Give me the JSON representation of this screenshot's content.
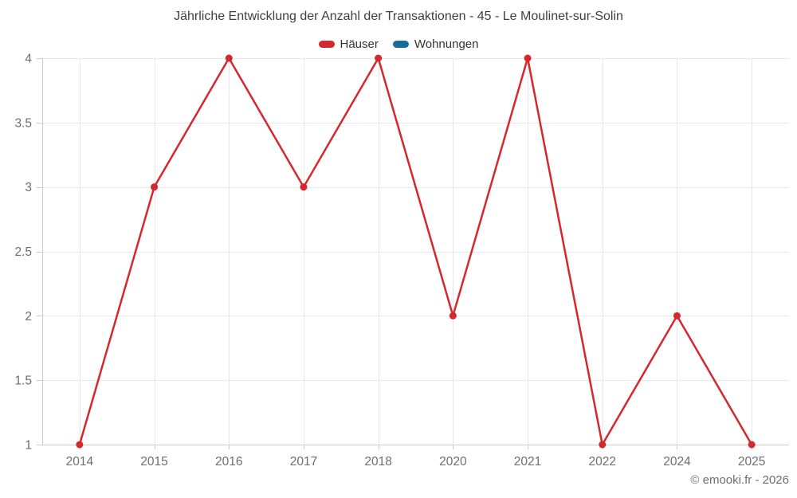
{
  "header": {
    "title": "Jährliche Entwicklung der Anzahl der Transaktionen - 45 - Le Moulinet-sur-Solin"
  },
  "footer": {
    "copyright": "© emooki.fr - 2026"
  },
  "chart_data": {
    "type": "line",
    "title": "Jährliche Entwicklung der Anzahl der Transaktionen - 45 - Le Moulinet-sur-Solin",
    "categories": [
      "2014",
      "2015",
      "2016",
      "2017",
      "2018",
      "2020",
      "2021",
      "2022",
      "2024",
      "2025"
    ],
    "series": [
      {
        "name": "Häuser",
        "color": "#d5282d",
        "values": [
          1,
          3,
          4,
          3,
          4,
          2,
          4,
          1,
          2,
          1
        ]
      },
      {
        "name": "Wohnungen",
        "color": "#156d9e",
        "values": []
      }
    ],
    "yticks": [
      1,
      1.5,
      2,
      2.5,
      3,
      3.5,
      4
    ],
    "ylim": [
      1,
      4
    ],
    "xlabel": "",
    "ylabel": "",
    "grid": true,
    "legend_position": "top"
  },
  "colors": {
    "grid": "#e8e8e8",
    "axis": "#cccccc",
    "axis_label": "#6e6e6e",
    "title_text": "#3f3f3f",
    "legend_text": "#333333",
    "footer_text": "#6e6e6e"
  }
}
